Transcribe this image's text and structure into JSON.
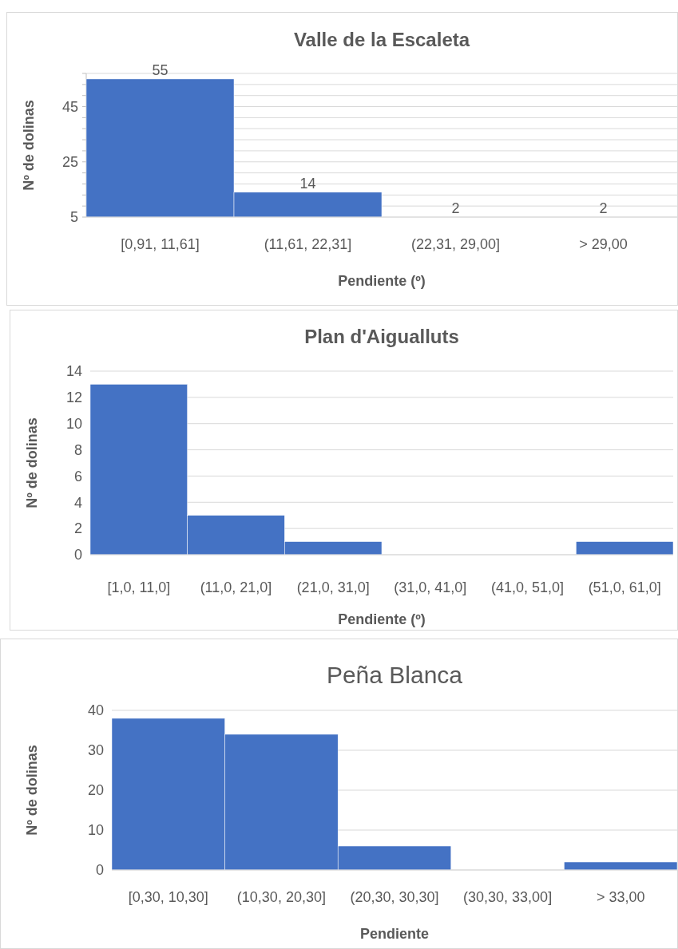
{
  "chart_data": [
    {
      "type": "bar",
      "title": "Valle de la Escaleta",
      "xlabel": "Pendiente (º)",
      "ylabel": "Nº de dolinas",
      "categories": [
        "[0,91, 11,61]",
        "(11,61, 22,31]",
        "(22,31, 29,00]",
        "> 29,00"
      ],
      "values": [
        55,
        14,
        null,
        null
      ],
      "value_labels": [
        "55",
        "14",
        "2",
        "2"
      ],
      "color": "#4472c4",
      "ylim": [
        5,
        57
      ],
      "yticks": [
        5,
        {
          "value": 9,
          "label": null
        },
        {
          "value": 13,
          "label": null
        },
        {
          "value": 17,
          "label": null
        },
        {
          "value": 21,
          "label": null
        },
        25,
        {
          "value": 29,
          "label": null
        },
        {
          "value": 33,
          "label": null
        },
        {
          "value": 37,
          "label": null
        },
        {
          "value": 41,
          "label": null
        },
        45,
        {
          "value": 49,
          "label": null
        },
        {
          "value": 53,
          "label": null
        },
        {
          "value": 57,
          "label": null
        }
      ],
      "grid": "y"
    },
    {
      "type": "bar",
      "title": "Plan d'Aigualluts",
      "xlabel": "Pendiente (º)",
      "ylabel": "Nº de dolinas",
      "categories": [
        "[1,0, 11,0]",
        "(11,0, 21,0]",
        "(21,0, 31,0]",
        "(31,0, 41,0]",
        "(41,0, 51,0]",
        "(51,0, 61,0]"
      ],
      "values": [
        13,
        3,
        1,
        0,
        0,
        1
      ],
      "color": "#4472c4",
      "ylim": [
        0,
        14
      ],
      "yticks": [
        0,
        2,
        4,
        6,
        8,
        10,
        12,
        14
      ],
      "grid": "y"
    },
    {
      "type": "bar",
      "title": "Peña Blanca",
      "xlabel": "Pendiente",
      "ylabel": "Nº de dolinas",
      "categories": [
        "[0,30, 10,30]",
        "(10,30, 20,30]",
        "(20,30, 30,30]",
        "(30,30, 33,00]",
        "> 33,00"
      ],
      "values": [
        38,
        34,
        6,
        0,
        2
      ],
      "color": "#4472c4",
      "ylim": [
        0,
        40
      ],
      "yticks": [
        0,
        10,
        20,
        30,
        40
      ],
      "grid": "y"
    }
  ]
}
